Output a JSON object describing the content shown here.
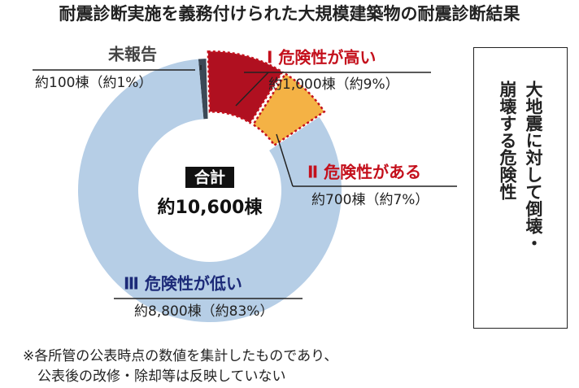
{
  "chart_data": {
    "type": "donut",
    "title": "耐震診断実施を義務付けられた大規模建築物の耐震診断結果",
    "categories": [
      "未報告",
      "Ⅰ 危険性が高い",
      "Ⅱ 危険性がある",
      "Ⅲ 危険性が低い"
    ],
    "values": [
      100,
      1000,
      700,
      8800
    ],
    "value_labels": [
      "約100棟（約1%）",
      "約1,000棟（約9%）",
      "約700棟（約7%）",
      "約8,800棟（約83%）"
    ],
    "colors": [
      "#3b4856",
      "#b01020",
      "#f4b245",
      "#b6cee6"
    ],
    "label_colors": [
      "#444444",
      "#c4101c",
      "#c4101c",
      "#1c2a78"
    ],
    "center_label": "合計",
    "center_value": "約10,600棟",
    "side_note": [
      "大地震に対して倒壊・",
      "崩壊する危険性"
    ],
    "footnote": [
      "※各所管の公表時点の数値を集計したものであり、",
      "公表後の改修・除却等は反映していない"
    ]
  }
}
